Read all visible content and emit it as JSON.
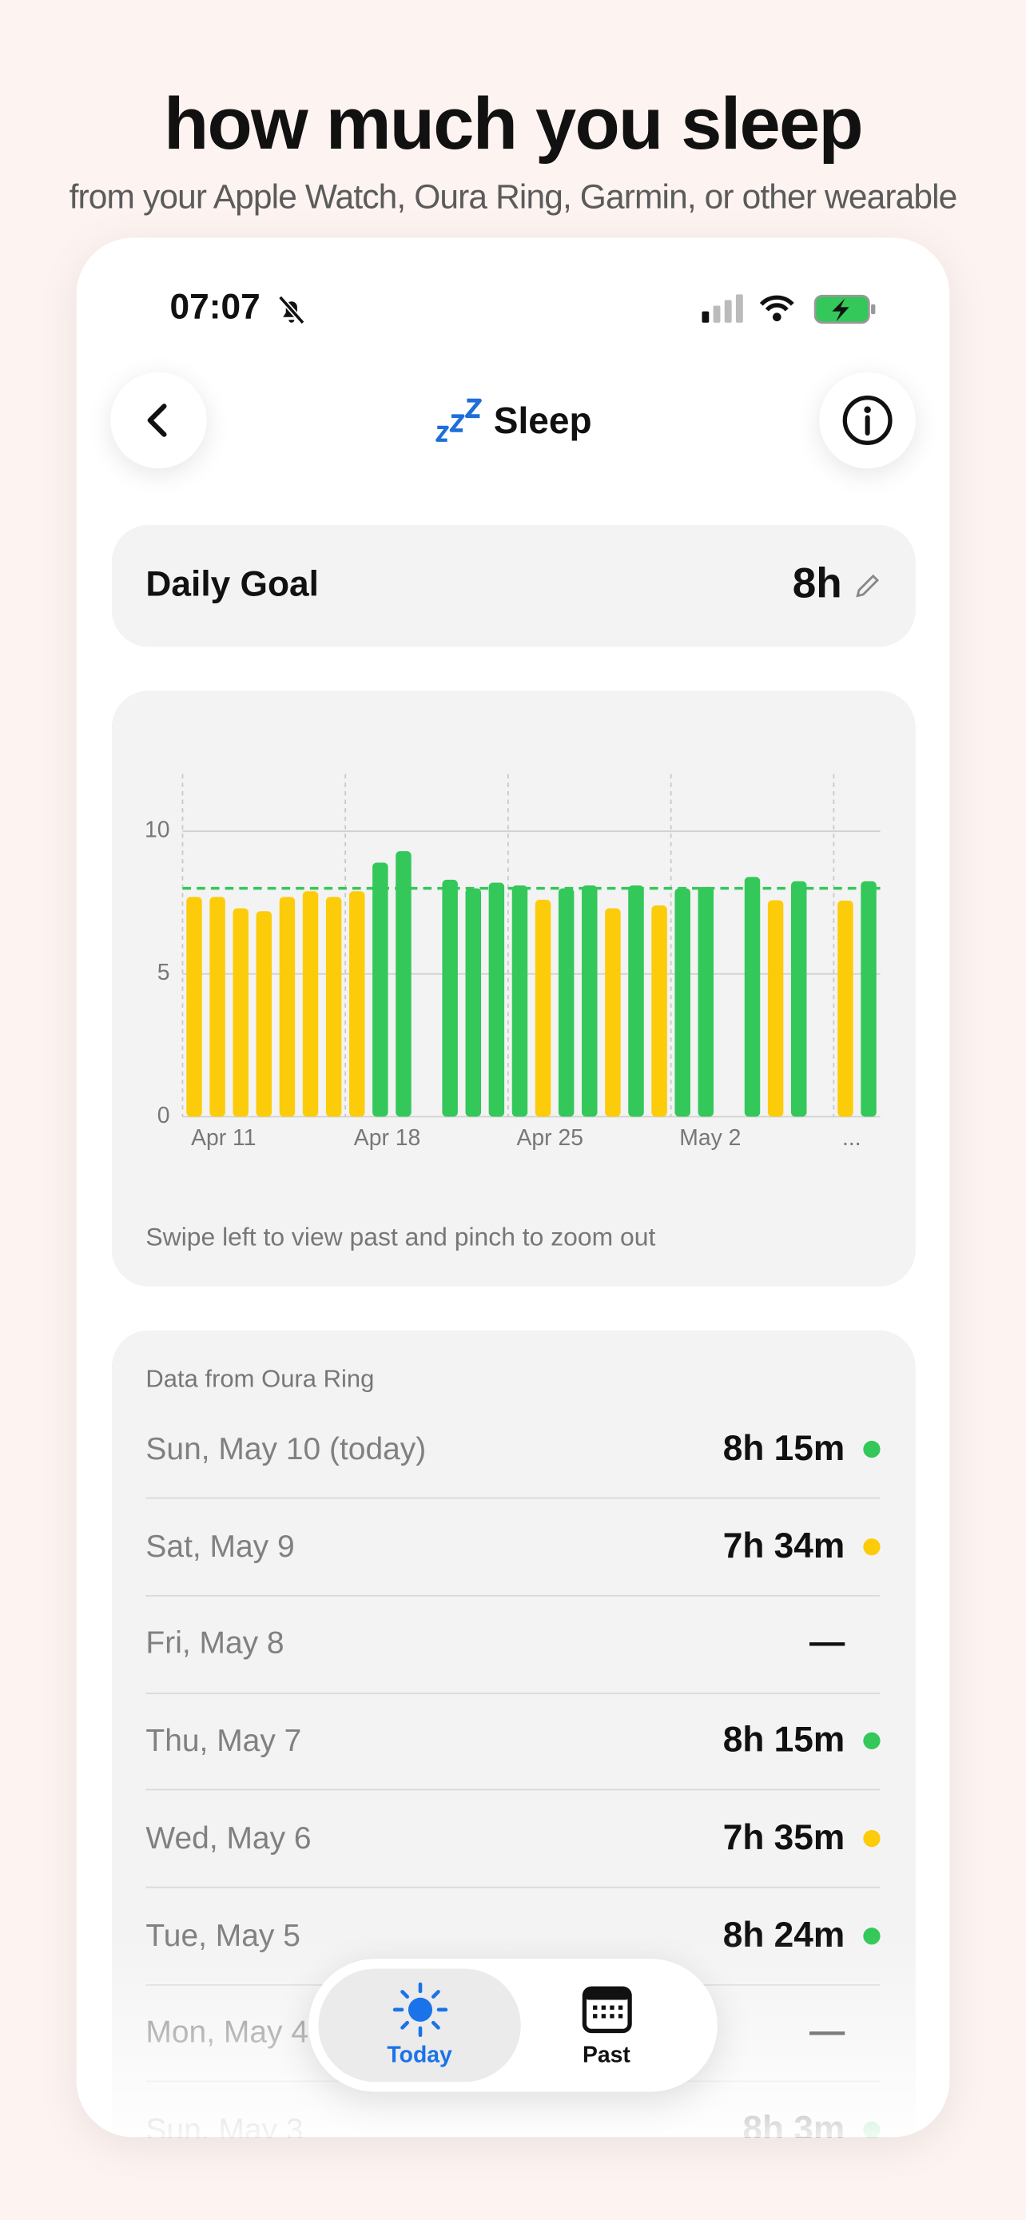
{
  "header": {
    "title": "how much you sleep",
    "subtitle": "from your Apple Watch, Oura Ring, Garmin, or other wearable"
  },
  "status_bar": {
    "time": "07:07"
  },
  "nav": {
    "title": "Sleep"
  },
  "goal": {
    "label": "Daily Goal",
    "value": "8h"
  },
  "chart_data": {
    "type": "bar",
    "categories": [
      "Apr 11",
      null,
      null,
      null,
      null,
      null,
      null,
      "Apr 18",
      null,
      null,
      null,
      null,
      null,
      null,
      "Apr 25",
      null,
      null,
      null,
      null,
      null,
      null,
      "May 2",
      null,
      null,
      null,
      null,
      null,
      null,
      "...",
      null
    ],
    "values": [
      7.7,
      7.7,
      7.3,
      7.2,
      7.7,
      7.9,
      7.7,
      7.9,
      8.9,
      9.3,
      null,
      8.3,
      8.0,
      8.2,
      8.1,
      7.6,
      8.0,
      8.1,
      7.3,
      8.1,
      7.4,
      8.0,
      8.05,
      null,
      8.4,
      7.58,
      8.25,
      null,
      7.57,
      8.25
    ],
    "goal": 8,
    "colors": {
      "below_goal": "#fccc0a",
      "goal_met": "#34c759",
      "goal_line": "#34c759"
    },
    "ylim": [
      0,
      12
    ],
    "yticks": [
      0,
      5,
      10
    ],
    "grid": true,
    "annotation": "Swipe left to view past and pinch to zoom out"
  },
  "list": {
    "source": "Data from Oura Ring",
    "rows": [
      {
        "date": "Sun, May 10 (today)",
        "duration": "8h 15m",
        "dot": "#34c759"
      },
      {
        "date": "Sat, May 9",
        "duration": "7h 34m",
        "dot": "#fccc0a"
      },
      {
        "date": "Fri, May 8",
        "duration": "—"
      },
      {
        "date": "Thu, May 7",
        "duration": "8h 15m",
        "dot": "#34c759"
      },
      {
        "date": "Wed, May 6",
        "duration": "7h 35m",
        "dot": "#fccc0a"
      },
      {
        "date": "Tue, May 5",
        "duration": "8h 24m",
        "dot": "#34c759"
      },
      {
        "date": "Mon, May 4",
        "duration": "—"
      },
      {
        "date": "Sun, May 3",
        "duration": "8h 3m",
        "dot": "#34c759"
      }
    ]
  },
  "tab_bar": {
    "tabs": [
      {
        "label": "Today",
        "active": true
      },
      {
        "label": "Past",
        "active": false
      }
    ]
  }
}
